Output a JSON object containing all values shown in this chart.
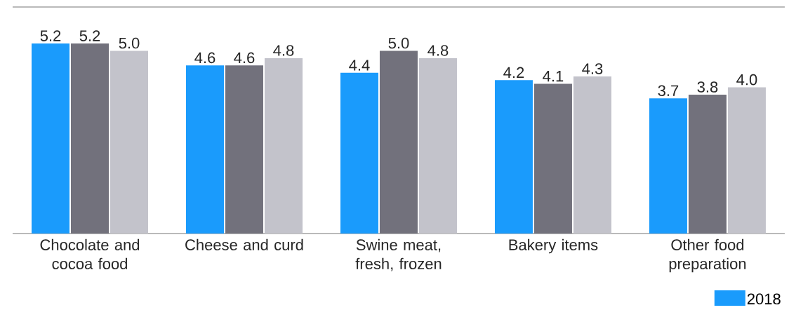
{
  "chart_data": {
    "type": "bar",
    "categories": [
      "Chocolate and cocoa food",
      "Cheese and curd",
      "Swine meat, fresh, frozen",
      "Bakery items",
      "Other food preparation"
    ],
    "series": [
      {
        "name": "2018",
        "color": "#1a9bfc",
        "values": [
          5.2,
          4.6,
          4.4,
          4.2,
          3.7
        ],
        "value_labels": [
          "5.2",
          "4.6",
          "4.4",
          "4.2",
          "3.7"
        ]
      },
      {
        "color": "#72717c",
        "values": [
          5.2,
          4.6,
          5.0,
          4.1,
          3.8
        ],
        "value_labels": [
          "5.2",
          "4.6",
          "5.0",
          "4.1",
          "3.8"
        ]
      },
      {
        "color": "#c3c3cb",
        "values": [
          5.0,
          4.8,
          4.8,
          4.3,
          4.0
        ],
        "value_labels": [
          "5.0",
          "4.8",
          "4.8",
          "4.3",
          "4.0"
        ]
      }
    ],
    "ylim": [
      0,
      6.2
    ],
    "legend": "bottom right"
  }
}
